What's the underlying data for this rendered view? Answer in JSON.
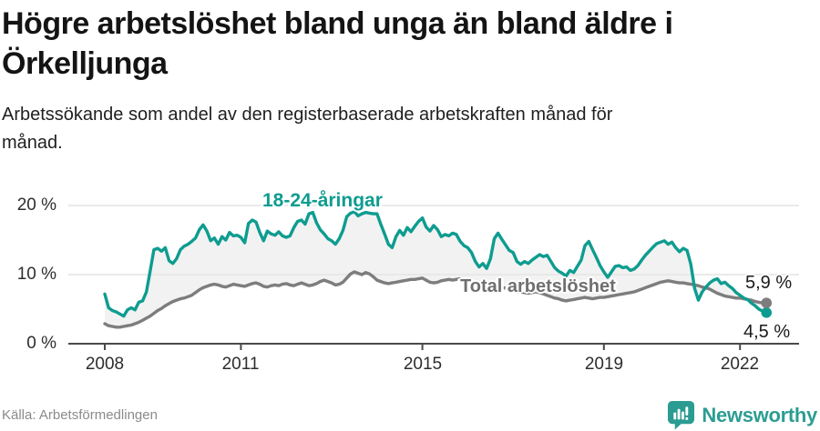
{
  "header": {
    "title": "Högre arbetslöshet bland unga än bland äldre i Örkelljunga",
    "title_lines": [
      "Högre arbetslöshet bland unga än bland äldre i",
      "Örkelljunga"
    ],
    "subtitle": "Arbetssökande som andel av den registerbaserade arbetskraften månad för månad.",
    "subtitle_lines": [
      "Arbetssökande som andel av den registerbaserade arbetskraften månad för",
      "månad."
    ]
  },
  "footer": {
    "source": "Källa: Arbetsförmedlingen",
    "brand": "Newsworthy"
  },
  "colors": {
    "youth_line": "#0e9c90",
    "total_line": "#7d7d7d",
    "band_fill": "#f2f2f2",
    "gridline": "#e4e4e4",
    "axis": "#4a4a4a",
    "brand_teal": "#2c9d93"
  },
  "chart_data": {
    "type": "line",
    "unit": "%",
    "x_interval": "month",
    "x_start": "2008-01",
    "x_end": "2022-08",
    "x_tick_years": [
      2008,
      2011,
      2015,
      2019,
      2022
    ],
    "x_tick_labels": [
      "2008",
      "2011",
      "2015",
      "2019",
      "2022"
    ],
    "y_tick_labels": [
      "0 %",
      "10 %",
      "20 %"
    ],
    "y_gridlines": [
      10,
      20
    ],
    "ylim": [
      0,
      22.8
    ],
    "grid": "horizontal",
    "legend": "inline-labels",
    "band_fill": "#f2f2f2",
    "series": [
      {
        "name": "18-24-åringar",
        "color": "#0e9c90",
        "end_label": "4,5 %",
        "end_value": 4.5,
        "values": [
          7.2,
          5.2,
          4.8,
          4.6,
          4.3,
          4.0,
          4.9,
          5.2,
          4.9,
          6.0,
          6.2,
          7.5,
          10.5,
          13.6,
          13.8,
          13.4,
          13.9,
          12.0,
          11.6,
          12.3,
          13.6,
          14.1,
          14.4,
          14.8,
          15.3,
          16.5,
          17.2,
          16.3,
          14.9,
          15.3,
          14.4,
          15.5,
          15.0,
          16.1,
          15.6,
          15.7,
          15.4,
          14.6,
          17.4,
          17.9,
          17.6,
          16.1,
          14.9,
          16.3,
          15.9,
          15.7,
          16.2,
          15.6,
          15.4,
          15.6,
          16.8,
          17.7,
          17.9,
          17.3,
          18.8,
          19.0,
          17.5,
          16.5,
          15.9,
          15.2,
          14.9,
          14.4,
          15.2,
          16.4,
          18.4,
          18.9,
          19.1,
          18.5,
          18.8,
          19.0,
          18.9,
          18.8,
          18.8,
          17.3,
          15.9,
          14.4,
          13.9,
          15.5,
          16.4,
          15.7,
          16.8,
          16.2,
          17.0,
          17.7,
          18.2,
          16.9,
          16.3,
          17.1,
          16.5,
          15.5,
          15.8,
          15.6,
          16.0,
          15.8,
          14.8,
          14.2,
          13.9,
          13.2,
          11.9,
          11.1,
          11.6,
          10.9,
          12.3,
          15.2,
          16.0,
          15.1,
          14.3,
          13.5,
          13.2,
          11.9,
          11.5,
          11.9,
          11.6,
          12.1,
          12.5,
          12.9,
          12.6,
          12.8,
          11.9,
          11.0,
          10.5,
          10.2,
          9.8,
          10.6,
          10.3,
          11.2,
          12.1,
          14.2,
          14.8,
          13.6,
          12.5,
          11.3,
          10.4,
          9.6,
          10.4,
          11.2,
          11.3,
          11.0,
          11.1,
          10.6,
          10.8,
          11.3,
          12.1,
          12.8,
          13.4,
          14.0,
          14.5,
          14.7,
          14.9,
          14.4,
          14.7,
          13.9,
          13.3,
          13.8,
          13.5,
          11.5,
          8.0,
          6.3,
          7.5,
          8.2,
          8.8,
          9.2,
          9.4,
          8.7,
          8.9,
          8.4,
          8.0,
          7.4,
          7.0,
          6.6,
          6.4,
          5.9,
          5.5,
          5.0,
          4.7,
          4.5
        ]
      },
      {
        "name": "Total arbetslöshet",
        "color": "#7d7d7d",
        "end_label": "5,9 %",
        "end_value": 5.9,
        "values": [
          2.9,
          2.6,
          2.5,
          2.4,
          2.4,
          2.5,
          2.6,
          2.7,
          2.9,
          3.1,
          3.4,
          3.7,
          4.0,
          4.4,
          4.8,
          5.1,
          5.5,
          5.8,
          6.1,
          6.3,
          6.5,
          6.6,
          6.8,
          7.0,
          7.4,
          7.8,
          8.1,
          8.3,
          8.5,
          8.6,
          8.5,
          8.3,
          8.2,
          8.4,
          8.6,
          8.5,
          8.4,
          8.3,
          8.5,
          8.7,
          8.8,
          8.6,
          8.3,
          8.2,
          8.4,
          8.5,
          8.4,
          8.6,
          8.7,
          8.5,
          8.4,
          8.6,
          8.8,
          8.6,
          8.4,
          8.5,
          8.7,
          9.0,
          9.2,
          9.0,
          8.8,
          8.5,
          8.6,
          8.9,
          9.5,
          10.1,
          10.4,
          10.2,
          10.0,
          10.3,
          10.1,
          9.7,
          9.2,
          9.0,
          8.8,
          8.7,
          8.8,
          8.9,
          9.0,
          9.1,
          9.2,
          9.3,
          9.3,
          9.4,
          9.5,
          9.2,
          8.9,
          8.8,
          8.9,
          9.1,
          9.2,
          9.3,
          9.2,
          9.3,
          9.4,
          9.3,
          9.2,
          9.0,
          8.8,
          8.7,
          8.5,
          8.4,
          8.5,
          8.6,
          8.4,
          8.2,
          8.0,
          7.9,
          7.8,
          7.6,
          7.5,
          7.4,
          7.3,
          7.4,
          7.5,
          7.4,
          7.2,
          7.0,
          6.8,
          6.6,
          6.5,
          6.3,
          6.2,
          6.3,
          6.4,
          6.5,
          6.6,
          6.7,
          6.6,
          6.5,
          6.6,
          6.7,
          6.7,
          6.8,
          6.9,
          7.0,
          7.1,
          7.2,
          7.3,
          7.4,
          7.5,
          7.7,
          7.9,
          8.1,
          8.3,
          8.5,
          8.7,
          8.9,
          9.0,
          9.1,
          9.0,
          8.9,
          8.8,
          8.8,
          8.7,
          8.6,
          8.5,
          8.4,
          8.2,
          8.1,
          7.9,
          7.6,
          7.3,
          7.1,
          6.9,
          6.8,
          6.7,
          6.6,
          6.6,
          6.5,
          6.4,
          6.3,
          6.1,
          6.0,
          5.9,
          5.9
        ]
      }
    ]
  }
}
